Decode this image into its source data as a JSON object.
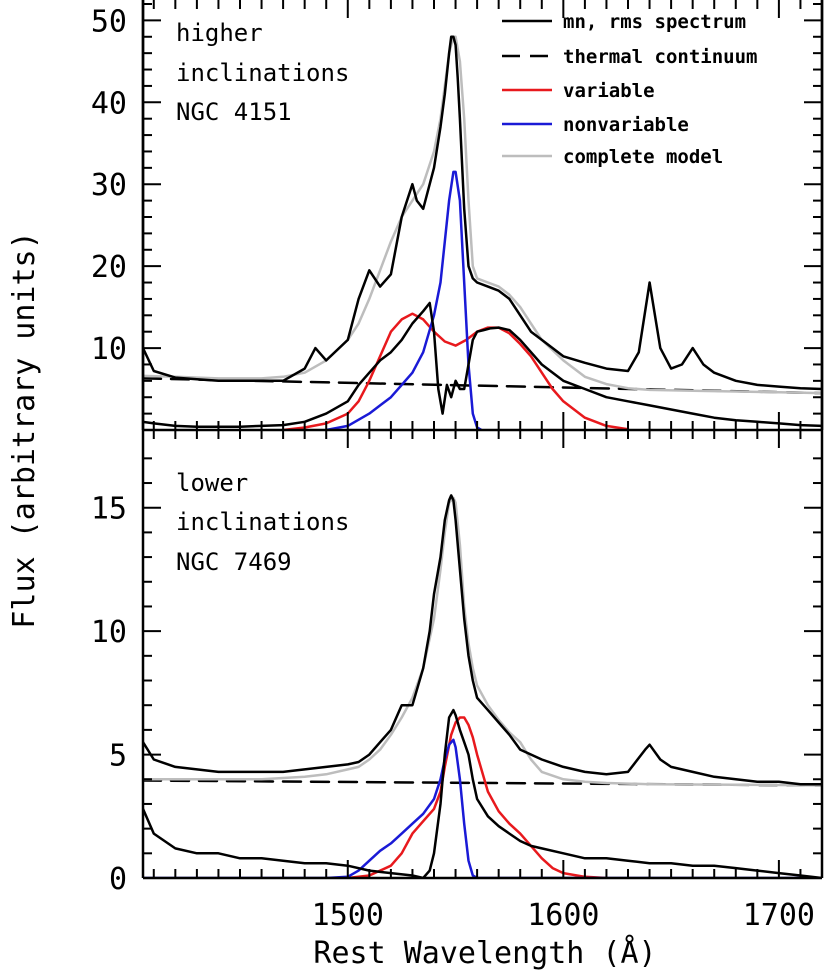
{
  "chart_data": {
    "type": "line",
    "xlabel": "Rest Wavelength (Å)",
    "ylabel": "Flux (arbitrary units)",
    "xlim": [
      1405,
      1720
    ],
    "x_ticks": [
      1500,
      1600,
      1700
    ],
    "legend": {
      "placement": "top-right",
      "entries": [
        {
          "label": "mn, rms spectrum",
          "color": "#000000",
          "dash": "solid"
        },
        {
          "label": "thermal continuum",
          "color": "#000000",
          "dash": "dashed"
        },
        {
          "label": "variable",
          "color": "#e8191d",
          "dash": "solid"
        },
        {
          "label": "nonvariable",
          "color": "#1a1ad6",
          "dash": "solid"
        },
        {
          "label": "complete model",
          "color": "#bdbdbd",
          "dash": "solid"
        }
      ]
    },
    "panels": [
      {
        "annotation": [
          "higher",
          "inclinations",
          "NGC 4151"
        ],
        "ylim": [
          0,
          52
        ],
        "y_ticks": [
          10,
          20,
          30,
          40,
          50
        ],
        "series": [
          {
            "label": "mn, rms spectrum",
            "color": "#000000",
            "dash": "solid",
            "x": [
              1405,
              1410,
              1420,
              1430,
              1440,
              1450,
              1460,
              1470,
              1480,
              1485,
              1490,
              1500,
              1505,
              1510,
              1515,
              1520,
              1525,
              1530,
              1532,
              1535,
              1540,
              1543,
              1545,
              1547,
              1548,
              1549,
              1550,
              1551,
              1552,
              1554,
              1556,
              1558,
              1560,
              1565,
              1570,
              1575,
              1580,
              1585,
              1590,
              1600,
              1610,
              1620,
              1630,
              1635,
              1640,
              1645,
              1650,
              1655,
              1660,
              1665,
              1670,
              1680,
              1690,
              1700,
              1710,
              1720
            ],
            "y": [
              10,
              7.2,
              6.4,
              6.2,
              6,
              6,
              6,
              6,
              7.5,
              10,
              8.5,
              11,
              16,
              19.5,
              17.5,
              19,
              26,
              30,
              28,
              27,
              32,
              37,
              41,
              46,
              48,
              48,
              47,
              43,
              38,
              27,
              20,
              18.5,
              18,
              17.5,
              17,
              16,
              14,
              12,
              11,
              9,
              8.2,
              7.5,
              7.2,
              9.5,
              18,
              10,
              7.5,
              8,
              10,
              8,
              7,
              6,
              5.5,
              5.3,
              5.1,
              5
            ]
          },
          {
            "label": "mn, rms spectrum",
            "color": "#000000",
            "dash": "solid",
            "x": [
              1405,
              1410,
              1420,
              1430,
              1440,
              1450,
              1460,
              1470,
              1480,
              1490,
              1500,
              1505,
              1510,
              1515,
              1520,
              1525,
              1530,
              1535,
              1538,
              1540,
              1542,
              1544,
              1546,
              1548,
              1550,
              1552,
              1554,
              1556,
              1558,
              1560,
              1563,
              1566,
              1570,
              1575,
              1580,
              1590,
              1600,
              1610,
              1620,
              1630,
              1640,
              1650,
              1660,
              1670,
              1680,
              1690,
              1700,
              1710,
              1720
            ],
            "y": [
              1,
              0.8,
              0.5,
              0.4,
              0.4,
              0.4,
              0.5,
              0.6,
              1,
              2,
              3.5,
              5.5,
              7,
              8.5,
              9.5,
              11,
              13,
              14.5,
              15.5,
              12,
              5,
              2,
              5.5,
              4,
              6,
              5,
              5,
              8,
              11,
              12,
              12.2,
              12.4,
              12.5,
              12.2,
              11,
              8,
              6,
              5,
              4,
              3.5,
              3,
              2.5,
              2,
              1.5,
              1.2,
              1,
              0.8,
              0.6,
              0.5
            ]
          },
          {
            "label": "thermal continuum",
            "color": "#000000",
            "dash": "dashed",
            "x": [
              1405,
              1720
            ],
            "y": [
              6.3,
              4.5
            ]
          },
          {
            "label": "variable",
            "color": "#e8191d",
            "dash": "solid",
            "x": [
              1470,
              1480,
              1490,
              1500,
              1505,
              1510,
              1515,
              1520,
              1525,
              1530,
              1535,
              1540,
              1545,
              1550,
              1555,
              1560,
              1565,
              1570,
              1575,
              1580,
              1585,
              1590,
              1595,
              1600,
              1610,
              1620,
              1630
            ],
            "y": [
              0,
              0.3,
              0.8,
              2,
              3.5,
              6,
              9,
              12,
              13.5,
              14.2,
              13.5,
              12,
              10.8,
              10.3,
              11,
              12,
              12.5,
              12.5,
              11.8,
              10.5,
              9,
              7,
              5,
              3.5,
              1.5,
              0.5,
              0.1
            ]
          },
          {
            "label": "nonvariable",
            "color": "#1a1ad6",
            "dash": "solid",
            "x": [
              1490,
              1500,
              1510,
              1515,
              1520,
              1525,
              1530,
              1535,
              1540,
              1543,
              1545,
              1547,
              1549,
              1550,
              1552,
              1554,
              1556,
              1558,
              1560,
              1562
            ],
            "y": [
              0,
              0.5,
              2,
              3,
              4,
              5.5,
              7,
              9.5,
              14,
              18,
              23,
              28,
              31.5,
              31.5,
              28,
              18,
              8,
              2,
              0.3,
              0
            ]
          },
          {
            "label": "complete model",
            "color": "#bdbdbd",
            "dash": "solid",
            "x": [
              1405,
              1420,
              1440,
              1460,
              1470,
              1480,
              1490,
              1500,
              1505,
              1510,
              1515,
              1520,
              1525,
              1530,
              1535,
              1540,
              1543,
              1545,
              1547,
              1549,
              1550,
              1552,
              1554,
              1556,
              1558,
              1560,
              1565,
              1570,
              1575,
              1580,
              1585,
              1590,
              1600,
              1610,
              1620,
              1630,
              1640,
              1660,
              1680,
              1700,
              1720
            ],
            "y": [
              6.6,
              6.5,
              6.3,
              6.3,
              6.5,
              7,
              8.5,
              11,
              13,
              16,
              19.5,
              23,
              26,
              28,
              30,
              34,
              38,
              42,
              46,
              48,
              48,
              45,
              38,
              28,
              20,
              18.5,
              18,
              17.5,
              16.5,
              15,
              13,
              11,
              8.5,
              6.5,
              5.6,
              5.1,
              4.9,
              4.8,
              4.7,
              4.6,
              4.5
            ]
          }
        ]
      },
      {
        "annotation": [
          "lower",
          "inclinations",
          "NGC 7469"
        ],
        "ylim": [
          0,
          17.5
        ],
        "y_ticks": [
          0,
          5,
          10,
          15
        ],
        "series": [
          {
            "label": "mn, rms spectrum",
            "color": "#000000",
            "dash": "solid",
            "x": [
              1405,
              1410,
              1420,
              1430,
              1440,
              1450,
              1460,
              1470,
              1480,
              1490,
              1500,
              1505,
              1510,
              1515,
              1520,
              1525,
              1530,
              1535,
              1538,
              1540,
              1543,
              1545,
              1547,
              1548,
              1549,
              1550,
              1552,
              1554,
              1556,
              1558,
              1560,
              1565,
              1570,
              1575,
              1580,
              1590,
              1600,
              1610,
              1620,
              1630,
              1638,
              1640,
              1645,
              1650,
              1660,
              1670,
              1680,
              1690,
              1700,
              1710,
              1720
            ],
            "y": [
              5.5,
              4.8,
              4.5,
              4.4,
              4.3,
              4.3,
              4.3,
              4.3,
              4.4,
              4.5,
              4.6,
              4.7,
              5,
              5.5,
              6,
              7,
              7,
              8.5,
              10,
              11.5,
              13,
              14.5,
              15.3,
              15.5,
              15.3,
              14.5,
              12.5,
              10.5,
              9,
              8,
              7.3,
              6.8,
              6.3,
              5.8,
              5.2,
              4.8,
              4.5,
              4.3,
              4.2,
              4.3,
              5.2,
              5.4,
              4.8,
              4.5,
              4.3,
              4.1,
              4,
              3.9,
              3.9,
              3.8,
              3.8
            ]
          },
          {
            "label": "mn, rms spectrum",
            "color": "#000000",
            "dash": "solid",
            "x": [
              1405,
              1410,
              1420,
              1430,
              1440,
              1450,
              1460,
              1470,
              1480,
              1490,
              1500,
              1510,
              1520,
              1530,
              1535,
              1538,
              1540,
              1543,
              1545,
              1547,
              1549,
              1550,
              1552,
              1554,
              1556,
              1558,
              1560,
              1565,
              1570,
              1575,
              1580,
              1585,
              1590,
              1600,
              1610,
              1620,
              1630,
              1640,
              1650,
              1660,
              1670,
              1680,
              1690,
              1700,
              1710,
              1720
            ],
            "y": [
              2.8,
              1.8,
              1.2,
              1,
              1,
              0.8,
              0.8,
              0.7,
              0.6,
              0.6,
              0.5,
              0.3,
              0.2,
              0.1,
              0,
              0.3,
              1,
              3,
              5,
              6.5,
              6.8,
              6.6,
              6,
              5.5,
              5,
              4,
              3.2,
              2.5,
              2.1,
              1.8,
              1.5,
              1.3,
              1.2,
              1,
              0.8,
              0.8,
              0.7,
              0.6,
              0.6,
              0.5,
              0.5,
              0.4,
              0.3,
              0.2,
              0.1,
              0
            ]
          },
          {
            "label": "thermal continuum",
            "color": "#000000",
            "dash": "dashed",
            "x": [
              1405,
              1720
            ],
            "y": [
              3.95,
              3.75
            ]
          },
          {
            "label": "variable",
            "color": "#e8191d",
            "dash": "solid",
            "x": [
              1500,
              1510,
              1520,
              1525,
              1530,
              1535,
              1540,
              1543,
              1545,
              1548,
              1550,
              1552,
              1554,
              1556,
              1558,
              1560,
              1565,
              1570,
              1575,
              1580,
              1585,
              1590,
              1595,
              1600,
              1610,
              1620
            ],
            "y": [
              0,
              0.1,
              0.5,
              1,
              1.8,
              2.3,
              2.8,
              3.5,
              4.5,
              5.8,
              6.3,
              6.5,
              6.5,
              6.2,
              5.7,
              5,
              3.5,
              2.7,
              2.2,
              1.8,
              1.3,
              0.8,
              0.4,
              0.2,
              0.05,
              0
            ]
          },
          {
            "label": "nonvariable",
            "color": "#1a1ad6",
            "dash": "solid",
            "x": [
              1405,
              1490,
              1500,
              1505,
              1510,
              1515,
              1520,
              1525,
              1530,
              1535,
              1540,
              1543,
              1545,
              1547,
              1549,
              1550,
              1552,
              1554,
              1556,
              1558,
              1560,
              1720
            ],
            "y": [
              0,
              0,
              0.05,
              0.3,
              0.7,
              1.1,
              1.4,
              1.8,
              2.2,
              2.6,
              3.2,
              4,
              4.8,
              5.4,
              5.6,
              5.3,
              4,
              2.2,
              0.7,
              0.1,
              0,
              0
            ]
          },
          {
            "label": "complete model",
            "color": "#bdbdbd",
            "dash": "solid",
            "x": [
              1405,
              1420,
              1440,
              1460,
              1480,
              1490,
              1500,
              1505,
              1510,
              1515,
              1520,
              1525,
              1530,
              1535,
              1540,
              1543,
              1545,
              1547,
              1549,
              1550,
              1552,
              1554,
              1556,
              1558,
              1560,
              1565,
              1570,
              1575,
              1580,
              1585,
              1590,
              1600,
              1610,
              1620,
              1640,
              1680,
              1720
            ],
            "y": [
              4,
              4,
              4,
              4,
              4.1,
              4.2,
              4.4,
              4.5,
              4.8,
              5.2,
              5.8,
              6.5,
              7.3,
              8.5,
              10.5,
              12.5,
              14,
              15.2,
              15.4,
              15.2,
              13.5,
              11,
              9.5,
              8.5,
              7.8,
              7,
              6.4,
              5.9,
              5.5,
              4.8,
              4.3,
              4,
              3.9,
              3.85,
              3.8,
              3.78,
              3.75
            ]
          }
        ]
      }
    ]
  }
}
